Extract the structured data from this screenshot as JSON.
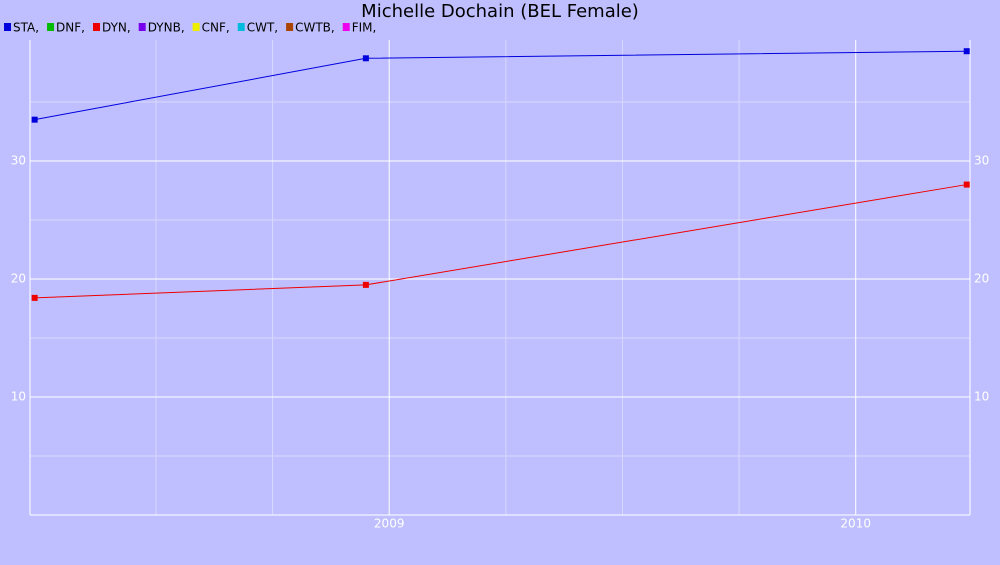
{
  "chart_data": {
    "type": "line",
    "title": "Michelle Dochain (BEL Female)",
    "x": [
      2008.24,
      2008.95,
      2010.238
    ],
    "series": [
      {
        "name": "STA,",
        "color": "#0000dd",
        "values": [
          33.5,
          38.7,
          39.3
        ]
      },
      {
        "name": "DNF,",
        "color": "#00bb00",
        "values": [
          null,
          null,
          null
        ]
      },
      {
        "name": "DYN,",
        "color": "#ee0000",
        "values": [
          18.4,
          19.5,
          28.0
        ]
      },
      {
        "name": "DYNB,",
        "color": "#7700ee",
        "values": [
          null,
          null,
          null
        ]
      },
      {
        "name": "CNF,",
        "color": "#eeee00",
        "values": [
          null,
          null,
          null
        ]
      },
      {
        "name": "CWT,",
        "color": "#00bbdd",
        "values": [
          null,
          null,
          null
        ]
      },
      {
        "name": "CWTB,",
        "color": "#aa4400",
        "values": [
          null,
          null,
          null
        ]
      },
      {
        "name": "FIM,",
        "color": "#ee00ee",
        "values": [
          null,
          null,
          null
        ]
      }
    ],
    "xlim": [
      2008.23,
      2010.245
    ],
    "xticks": [
      2009,
      2010
    ],
    "minor_xticks": [
      2008.5,
      2008.75,
      2009.25,
      2009.5,
      2009.75
    ],
    "ylim": [
      0,
      40.25
    ],
    "yticks": [
      10,
      20,
      30
    ],
    "minor_yticks": [
      5,
      15,
      25,
      35
    ],
    "grid": true,
    "legend": "top-left"
  }
}
